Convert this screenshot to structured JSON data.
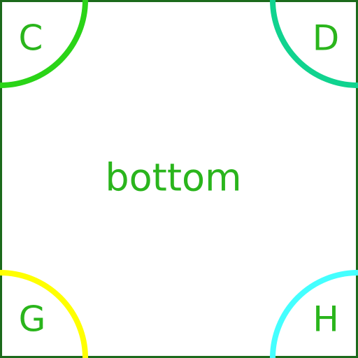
{
  "center_label": "bottom",
  "corners": {
    "top_left": {
      "letter": "C",
      "arc_color": "#2ad417"
    },
    "top_right": {
      "letter": "D",
      "arc_color": "#10d38f"
    },
    "bottom_left": {
      "letter": "G",
      "arc_color": "#ffff00"
    },
    "bottom_right": {
      "letter": "H",
      "arc_color": "#44ffff"
    }
  },
  "colors": {
    "border": "#1b6a1b",
    "text": "#2ab51c",
    "background": "#ffffff"
  }
}
